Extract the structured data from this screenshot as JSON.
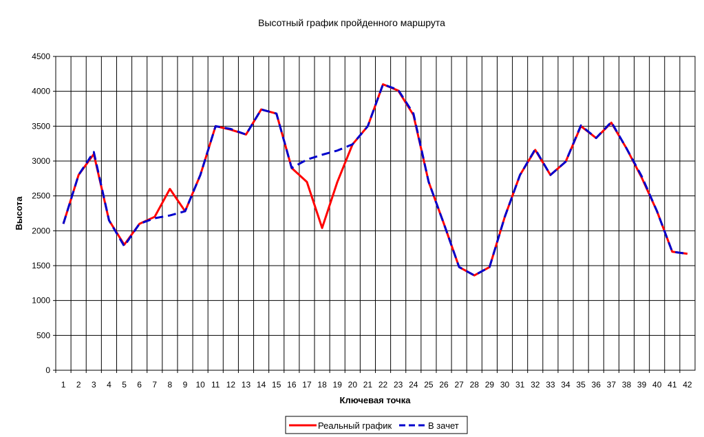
{
  "chart_data": {
    "type": "line",
    "title": "Высотный график пройденного маршрута",
    "xlabel": "Ключевая точка",
    "ylabel": "Высота",
    "x": [
      1,
      2,
      3,
      4,
      5,
      6,
      7,
      8,
      9,
      10,
      11,
      12,
      13,
      14,
      15,
      16,
      17,
      18,
      19,
      20,
      21,
      22,
      23,
      24,
      25,
      26,
      27,
      28,
      29,
      30,
      31,
      32,
      33,
      34,
      35,
      36,
      37,
      38,
      39,
      40,
      41,
      42
    ],
    "ylim": [
      0,
      4500
    ],
    "yticks": [
      0,
      500,
      1000,
      1500,
      2000,
      2500,
      3000,
      3500,
      4000,
      4500
    ],
    "grid": true,
    "legend_position": "bottom-center",
    "series": [
      {
        "name": "Реальный график",
        "color": "#ff0000",
        "style": "solid",
        "values": [
          2100,
          2800,
          3100,
          2150,
          1800,
          2100,
          2200,
          2600,
          2280,
          2800,
          3500,
          3450,
          3380,
          3740,
          3680,
          2900,
          2700,
          2040,
          2700,
          3240,
          3500,
          4100,
          4010,
          3660,
          2700,
          2100,
          1480,
          1360,
          1480,
          2200,
          2800,
          3160,
          2800,
          2990,
          3500,
          3330,
          3550,
          3180,
          2760,
          2280,
          1700,
          1670
        ]
      },
      {
        "name": "В зачет",
        "color": "#0000cc",
        "style": "dashed",
        "values": [
          2100,
          2800,
          3130,
          2150,
          1780,
          2100,
          2180,
          2220,
          2280,
          2800,
          3500,
          3460,
          3380,
          3740,
          3680,
          2900,
          3020,
          3090,
          3150,
          3240,
          3500,
          4100,
          4020,
          3680,
          2700,
          2100,
          1480,
          1360,
          1480,
          2200,
          2800,
          3170,
          2800,
          2990,
          3510,
          3330,
          3560,
          3180,
          2780,
          2280,
          1700,
          1670
        ]
      }
    ]
  }
}
